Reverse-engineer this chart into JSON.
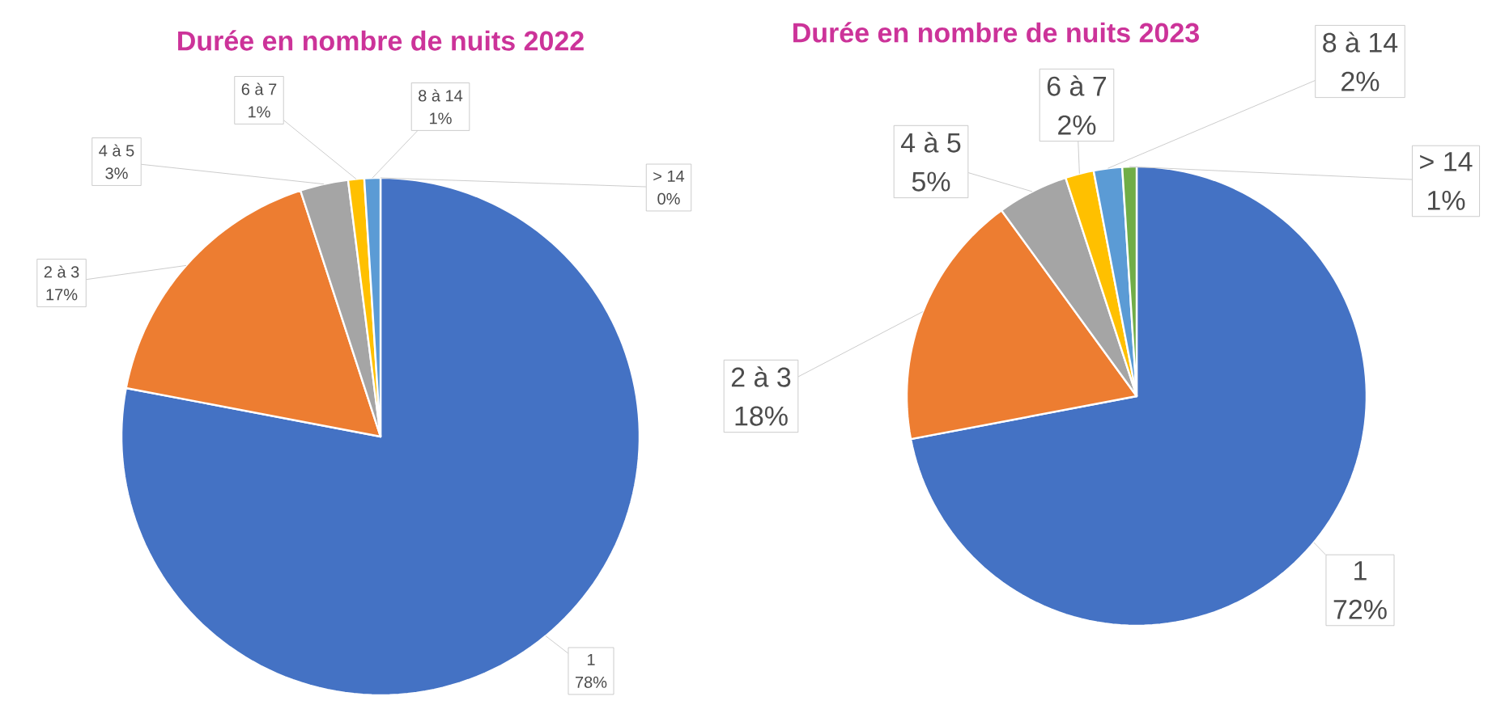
{
  "chart_data": [
    {
      "type": "pie",
      "title": "Durée en nombre de nuits 2022",
      "categories": [
        "1",
        "2 à 3",
        "4 à 5",
        "6 à 7",
        "8 à 14",
        "> 14"
      ],
      "values": [
        78,
        17,
        3,
        1,
        1,
        0
      ],
      "value_labels": [
        "78%",
        "17%",
        "3%",
        "1%",
        "1%",
        "0%"
      ],
      "colors": [
        "#4472c4",
        "#ed7d31",
        "#a5a5a5",
        "#ffc000",
        "#5b9bd5",
        "#70ad47"
      ]
    },
    {
      "type": "pie",
      "title": "Durée en nombre de nuits 2023",
      "categories": [
        "1",
        "2 à 3",
        "4 à 5",
        "6 à 7",
        "8 à 14",
        "> 14"
      ],
      "values": [
        72,
        18,
        5,
        2,
        2,
        1
      ],
      "value_labels": [
        "72%",
        "18%",
        "5%",
        "2%",
        "2%",
        "1%"
      ],
      "colors": [
        "#4472c4",
        "#ed7d31",
        "#a5a5a5",
        "#ffc000",
        "#5b9bd5",
        "#70ad47"
      ]
    }
  ]
}
